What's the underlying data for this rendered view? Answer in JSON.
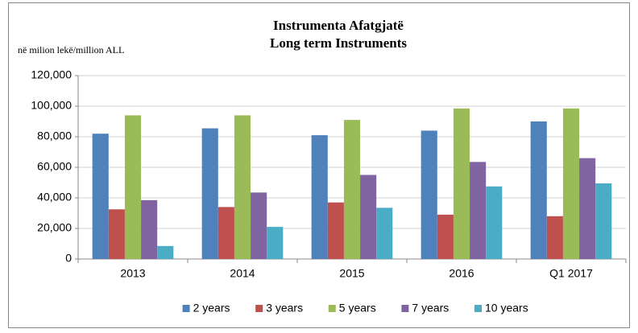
{
  "chart_data": {
    "type": "bar",
    "title": [
      "Instrumenta Afatgjatë",
      "Long term Instruments"
    ],
    "subtitle": "në milion lekë/million ALL",
    "categories": [
      "2013",
      "2014",
      "2015",
      "2016",
      "Q1 2017"
    ],
    "series": [
      {
        "name": "2 years",
        "color": "#4f81bd",
        "values": [
          82000,
          85500,
          81000,
          84000,
          90000
        ]
      },
      {
        "name": "3 years",
        "color": "#c0504d",
        "values": [
          32500,
          34000,
          37000,
          29000,
          28000
        ]
      },
      {
        "name": "5 years",
        "color": "#9bbb59",
        "values": [
          94000,
          94000,
          91000,
          98500,
          98500
        ]
      },
      {
        "name": "7 years",
        "color": "#8064a2",
        "values": [
          38500,
          43500,
          55000,
          63500,
          66000
        ]
      },
      {
        "name": "10 years",
        "color": "#4bacc6",
        "values": [
          8500,
          21000,
          33500,
          47500,
          49500
        ]
      }
    ],
    "ylim": [
      0,
      120000
    ],
    "yticks": [
      0,
      {
        "value": 20000,
        "label": "20,000"
      },
      {
        "value": 40000,
        "label": "40,000"
      },
      {
        "value": 60000,
        "label": "60,000"
      },
      {
        "value": 80000,
        "label": "80,000"
      },
      {
        "value": 100000,
        "label": "100,000"
      },
      {
        "value": 120000,
        "label": "120,000"
      }
    ],
    "grid": true,
    "legend": "bottom"
  }
}
